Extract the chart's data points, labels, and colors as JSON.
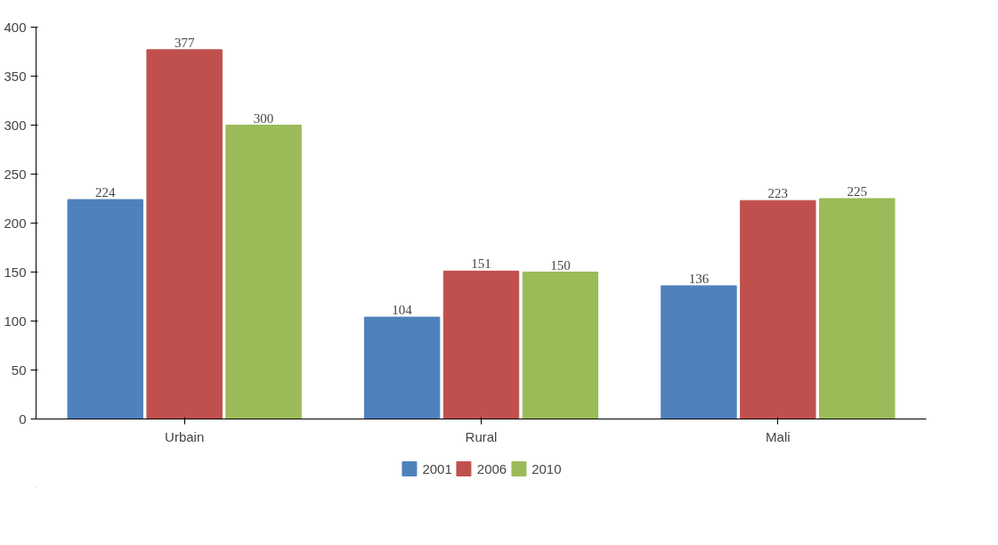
{
  "chart_data": {
    "type": "bar",
    "categories": [
      "Urbain",
      "Rural",
      "Mali"
    ],
    "series": [
      {
        "name": "2001",
        "color": "#4f81bd",
        "values": [
          224,
          104,
          136
        ]
      },
      {
        "name": "2006",
        "color": "#c0504d",
        "values": [
          377,
          151,
          223
        ]
      },
      {
        "name": "2010",
        "color": "#9bbb59",
        "values": [
          300,
          150,
          225
        ]
      }
    ],
    "ylim": [
      0,
      400
    ],
    "yticks": [
      0,
      50,
      100,
      150,
      200,
      250,
      300,
      350,
      400
    ],
    "data_labels": true,
    "legend": "bottom",
    "grid": false
  }
}
